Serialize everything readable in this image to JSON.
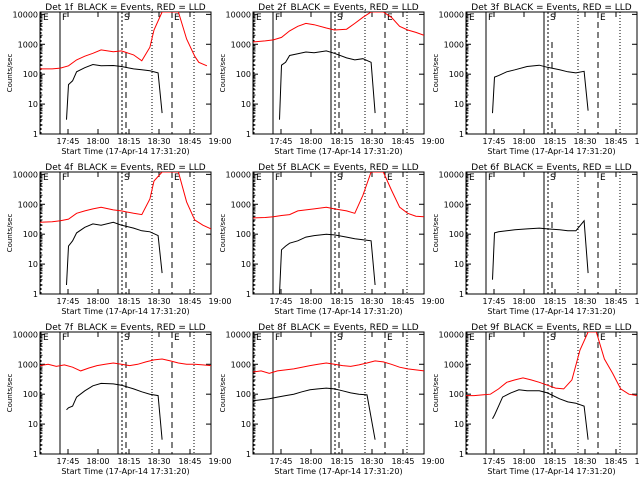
{
  "colors": {
    "events": "#000000",
    "lld": "#ff0000",
    "frame": "#000000",
    "background": "#ffffff"
  },
  "chart_data": [
    {
      "type": "line",
      "title": "Det 1f_BLACK = Events, RED = LLD",
      "xlabel": "Start Time (17-Apr-14 17:31:20)",
      "ylabel": "Counts/sec",
      "yscale": "log",
      "ylim": [
        1,
        12000
      ],
      "xlim_min": [
        38,
        80
      ],
      "xticks": [
        "17:45",
        "18:00",
        "18:15",
        "18:30",
        "18:45",
        "19:00"
      ],
      "yticks": [
        "1",
        "10",
        "100",
        "1000",
        "10000"
      ],
      "markers": [
        {
          "label": "E",
          "t": 38
        },
        {
          "label": "F",
          "t": 45.5
        },
        {
          "label": "S",
          "t": 68.5
        },
        {
          "label": "E",
          "t": 77
        }
      ],
      "series": [
        {
          "color": "#000000",
          "x": [
            44.5,
            45,
            46,
            47,
            49,
            51,
            53,
            56,
            58,
            61,
            63,
            65,
            67,
            68
          ],
          "y": [
            3,
            45,
            60,
            120,
            165,
            210,
            190,
            195,
            180,
            150,
            140,
            130,
            110,
            5
          ]
        },
        {
          "color": "#ff0000",
          "x": [
            38,
            41,
            43,
            45,
            47,
            49,
            51,
            53,
            56,
            58,
            61,
            63,
            65,
            66,
            68,
            70,
            72,
            74,
            76,
            77,
            79
          ],
          "y": [
            150,
            150,
            160,
            190,
            300,
            400,
            500,
            650,
            560,
            600,
            440,
            280,
            800,
            3000,
            12000,
            12000,
            12000,
            1500,
            400,
            250,
            190
          ]
        }
      ]
    },
    {
      "type": "line",
      "title": "Det 2f_BLACK = Events, RED = LLD",
      "xlabel": "Start Time (17-Apr-14 17:31:20)",
      "ylabel": "Counts/sec",
      "yscale": "log",
      "ylim": [
        1,
        12000
      ],
      "xlim_min": [
        38,
        80
      ],
      "xticks": [
        "17:45",
        "18:00",
        "18:15",
        "18:30",
        "18:45",
        "19:00"
      ],
      "yticks": [
        "1",
        "10",
        "100",
        "1000",
        "10000"
      ],
      "markers": [
        {
          "label": "E",
          "t": 38
        },
        {
          "label": "F",
          "t": 45.5
        },
        {
          "label": "S",
          "t": 68.5
        },
        {
          "label": "E",
          "t": 77
        }
      ],
      "series": [
        {
          "color": "#000000",
          "x": [
            44.5,
            45,
            46,
            47,
            49,
            51,
            53,
            56,
            58,
            61,
            63,
            65,
            67,
            68
          ],
          "y": [
            3,
            200,
            250,
            420,
            480,
            550,
            520,
            600,
            500,
            350,
            300,
            330,
            250,
            5
          ]
        },
        {
          "color": "#ff0000",
          "x": [
            38,
            41,
            43,
            45,
            47,
            49,
            51,
            53,
            56,
            58,
            61,
            63,
            65,
            67,
            68,
            70,
            72,
            74,
            76,
            78,
            80
          ],
          "y": [
            1200,
            1300,
            1400,
            1700,
            2800,
            4000,
            5000,
            4500,
            3500,
            3000,
            3200,
            5000,
            8000,
            12000,
            12000,
            12000,
            8000,
            4000,
            3000,
            2500,
            2000
          ]
        }
      ]
    },
    {
      "type": "line",
      "title": "Det 3f_BLACK = Events, RED = LLD",
      "xlabel": "Start Time (17-Apr-14 17:31:20)",
      "ylabel": "Counts/sec",
      "yscale": "log",
      "ylim": [
        1,
        12000
      ],
      "xlim_min": [
        38,
        80
      ],
      "xticks": [
        "17:45",
        "18:00",
        "18:15",
        "18:30",
        "18:45",
        "19:00"
      ],
      "yticks": [
        "1",
        "10",
        "100",
        "1000",
        "10000"
      ],
      "markers": [
        {
          "label": "E",
          "t": 38
        },
        {
          "label": "F",
          "t": 45.5
        },
        {
          "label": "S",
          "t": 68.5
        },
        {
          "label": "E",
          "t": 77
        }
      ],
      "series": [
        {
          "color": "#000000",
          "x": [
            44.5,
            45,
            46,
            48,
            50,
            53,
            56,
            58,
            61,
            63,
            65,
            67,
            68
          ],
          "y": [
            5,
            80,
            90,
            120,
            140,
            180,
            200,
            170,
            140,
            120,
            110,
            125,
            6
          ]
        }
      ]
    },
    {
      "type": "line",
      "title": "Det 4f_BLACK = Events, RED = LLD",
      "xlabel": "Start Time (17-Apr-14 17:31:20)",
      "ylabel": "Counts/sec",
      "yscale": "log",
      "ylim": [
        1,
        12000
      ],
      "xlim_min": [
        38,
        80
      ],
      "xticks": [
        "17:45",
        "18:00",
        "18:15",
        "18:30",
        "18:45",
        "19:00"
      ],
      "yticks": [
        "1",
        "10",
        "100",
        "1000",
        "10000"
      ],
      "markers": [
        {
          "label": "E",
          "t": 38
        },
        {
          "label": "F",
          "t": 45.5
        },
        {
          "label": "S",
          "t": 68.5
        },
        {
          "label": "E",
          "t": 77
        }
      ],
      "series": [
        {
          "color": "#000000",
          "x": [
            44.5,
            45,
            46,
            47,
            49,
            51,
            53,
            56,
            58,
            61,
            63,
            65,
            67,
            68
          ],
          "y": [
            2,
            40,
            60,
            110,
            170,
            220,
            200,
            250,
            200,
            160,
            130,
            120,
            90,
            5
          ]
        },
        {
          "color": "#ff0000",
          "x": [
            38,
            41,
            43,
            45,
            47,
            49,
            51,
            53,
            56,
            58,
            61,
            63,
            65,
            66,
            68,
            70,
            72,
            74,
            76,
            78,
            80
          ],
          "y": [
            250,
            260,
            280,
            320,
            500,
            600,
            700,
            800,
            650,
            600,
            500,
            450,
            1500,
            6000,
            12000,
            12000,
            12000,
            1200,
            300,
            200,
            150
          ]
        }
      ]
    },
    {
      "type": "line",
      "title": "Det 5f_BLACK = Events, RED = LLD",
      "xlabel": "Start Time (17-Apr-14 17:31:20)",
      "ylabel": "Counts/sec",
      "yscale": "log",
      "ylim": [
        1,
        12000
      ],
      "xlim_min": [
        38,
        80
      ],
      "xticks": [
        "17:45",
        "18:00",
        "18:15",
        "18:30",
        "18:45",
        "19:00"
      ],
      "yticks": [
        "1",
        "10",
        "100",
        "1000",
        "10000"
      ],
      "markers": [
        {
          "label": "E",
          "t": 38
        },
        {
          "label": "F",
          "t": 45.5
        },
        {
          "label": "S",
          "t": 68.5
        },
        {
          "label": "E",
          "t": 77
        }
      ],
      "series": [
        {
          "color": "#000000",
          "x": [
            44.5,
            45,
            46,
            47,
            49,
            51,
            53,
            56,
            58,
            61,
            63,
            65,
            67,
            68
          ],
          "y": [
            1,
            30,
            40,
            50,
            60,
            80,
            90,
            100,
            95,
            80,
            70,
            65,
            60,
            2
          ]
        },
        {
          "color": "#ff0000",
          "x": [
            38,
            41,
            43,
            45,
            47,
            49,
            51,
            53,
            56,
            58,
            61,
            63,
            65,
            67,
            68,
            70,
            72,
            74,
            76,
            78,
            80
          ],
          "y": [
            350,
            360,
            380,
            420,
            450,
            600,
            650,
            700,
            800,
            700,
            600,
            500,
            2000,
            12000,
            12000,
            12000,
            3000,
            800,
            500,
            400,
            380
          ]
        }
      ]
    },
    {
      "type": "line",
      "title": "Det 6f_BLACK = Events, RED = LLD",
      "xlabel": "Start Time (17-Apr-14 17:31:20)",
      "ylabel": "Counts/sec",
      "yscale": "log",
      "ylim": [
        1,
        12000
      ],
      "xlim_min": [
        38,
        80
      ],
      "xticks": [
        "17:45",
        "18:00",
        "18:15",
        "18:30",
        "18:45",
        "19:00"
      ],
      "yticks": [
        "1",
        "10",
        "100",
        "1000",
        "10000"
      ],
      "markers": [
        {
          "label": "E",
          "t": 38
        },
        {
          "label": "F",
          "t": 45.5
        },
        {
          "label": "S",
          "t": 68.5
        },
        {
          "label": "E",
          "t": 77
        }
      ],
      "series": [
        {
          "color": "#000000",
          "x": [
            44.5,
            45,
            46,
            48,
            50,
            53,
            56,
            58,
            61,
            63,
            65,
            67,
            68
          ],
          "y": [
            3,
            110,
            120,
            130,
            140,
            150,
            160,
            150,
            140,
            130,
            130,
            280,
            5
          ]
        }
      ]
    },
    {
      "type": "line",
      "title": "Det 7f_BLACK = Events, RED = LLD",
      "xlabel": "Start Time (17-Apr-14 17:31:20)",
      "ylabel": "Counts/sec",
      "yscale": "log",
      "ylim": [
        1,
        12000
      ],
      "xlim_min": [
        38,
        80
      ],
      "xticks": [
        "17:45",
        "18:00",
        "18:15",
        "18:30",
        "18:45",
        "19:00"
      ],
      "yticks": [
        "1",
        "10",
        "100",
        "1000",
        "10000"
      ],
      "markers": [
        {
          "label": "E",
          "t": 38
        },
        {
          "label": "F",
          "t": 45.5
        },
        {
          "label": "S",
          "t": 68.5
        },
        {
          "label": "E",
          "t": 77
        }
      ],
      "series": [
        {
          "color": "#000000",
          "x": [
            44.5,
            45,
            46,
            47,
            49,
            51,
            53,
            56,
            58,
            61,
            63,
            65,
            67,
            68
          ],
          "y": [
            30,
            35,
            40,
            80,
            130,
            190,
            230,
            220,
            200,
            150,
            120,
            100,
            90,
            3
          ]
        },
        {
          "color": "#ff0000",
          "x": [
            38,
            40,
            42,
            44,
            46,
            48,
            50,
            52,
            54,
            56,
            58,
            60,
            62,
            64,
            66,
            68,
            70,
            72,
            74,
            76,
            78,
            80
          ],
          "y": [
            900,
            1000,
            850,
            950,
            800,
            600,
            750,
            900,
            1000,
            1100,
            1000,
            900,
            1000,
            1200,
            1400,
            1500,
            1300,
            1100,
            1000,
            1000,
            950,
            900
          ]
        }
      ]
    },
    {
      "type": "line",
      "title": "Det 8f_BLACK = Events, RED = LLD",
      "xlabel": "Start Time (17-Apr-14 17:31:20)",
      "ylabel": "Counts/sec",
      "yscale": "log",
      "ylim": [
        1,
        12000
      ],
      "xlim_min": [
        38,
        80
      ],
      "xticks": [
        "17:45",
        "18:00",
        "18:15",
        "18:30",
        "18:45",
        "19:00"
      ],
      "yticks": [
        "1",
        "10",
        "100",
        "1000",
        "10000"
      ],
      "markers": [
        {
          "label": "E",
          "t": 38
        },
        {
          "label": "F",
          "t": 45.5
        },
        {
          "label": "S",
          "t": 68.5
        },
        {
          "label": "E",
          "t": 77
        }
      ],
      "series": [
        {
          "color": "#000000",
          "x": [
            38,
            40,
            42,
            44,
            46,
            48,
            50,
            52,
            54,
            56,
            58,
            60,
            62,
            64,
            66,
            68
          ],
          "y": [
            60,
            65,
            70,
            80,
            90,
            100,
            120,
            140,
            150,
            160,
            150,
            130,
            110,
            100,
            95,
            3
          ]
        },
        {
          "color": "#ff0000",
          "x": [
            38,
            40,
            42,
            44,
            46,
            48,
            50,
            52,
            54,
            56,
            58,
            60,
            62,
            64,
            66,
            68,
            70,
            72,
            74,
            76,
            78,
            80
          ],
          "y": [
            550,
            600,
            500,
            600,
            650,
            700,
            800,
            900,
            1000,
            1100,
            1000,
            900,
            850,
            950,
            1100,
            1300,
            1200,
            1000,
            800,
            700,
            650,
            600
          ]
        }
      ]
    },
    {
      "type": "line",
      "title": "Det 9f_BLACK = Events, RED = LLD",
      "xlabel": "Start Time (17-Apr-14 17:31:20)",
      "ylabel": "Counts/sec",
      "yscale": "log",
      "ylim": [
        1,
        12000
      ],
      "xlim_min": [
        38,
        80
      ],
      "xticks": [
        "17:45",
        "18:00",
        "18:15",
        "18:30",
        "18:45",
        "19:00"
      ],
      "yticks": [
        "1",
        "10",
        "100",
        "1000",
        "10000"
      ],
      "markers": [
        {
          "label": "E",
          "t": 38
        },
        {
          "label": "F",
          "t": 45.5
        },
        {
          "label": "S",
          "t": 68.5
        },
        {
          "label": "E",
          "t": 77
        }
      ],
      "series": [
        {
          "color": "#000000",
          "x": [
            44.5,
            45,
            46,
            47,
            49,
            51,
            53,
            56,
            58,
            61,
            63,
            65,
            67,
            68
          ],
          "y": [
            15,
            20,
            40,
            80,
            110,
            140,
            130,
            130,
            110,
            70,
            55,
            50,
            40,
            3
          ]
        },
        {
          "color": "#ff0000",
          "x": [
            38,
            40,
            42,
            44,
            46,
            48,
            50,
            52,
            54,
            56,
            58,
            60,
            62,
            64,
            66,
            68,
            70,
            72,
            74,
            76,
            78,
            80
          ],
          "y": [
            90,
            90,
            95,
            100,
            150,
            250,
            300,
            350,
            300,
            250,
            200,
            160,
            150,
            300,
            3000,
            12000,
            12000,
            1500,
            500,
            150,
            100,
            90
          ]
        }
      ]
    }
  ]
}
